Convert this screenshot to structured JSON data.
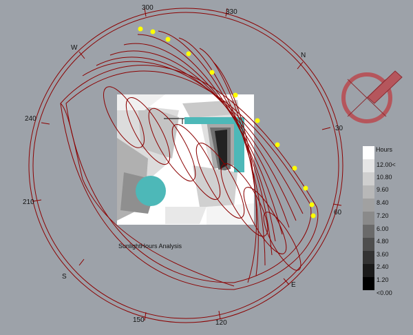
{
  "viewport": {
    "analysis_label": "SunlightHours Analysis",
    "compass": {
      "cardinals": [
        "W",
        "N",
        "S",
        "E"
      ],
      "degree_labels": [
        "300",
        "330",
        "240",
        "30",
        "210",
        "60",
        "150",
        "120"
      ]
    },
    "legend": {
      "title": "Hours",
      "values": [
        "12.00<",
        "10.80",
        "9.60",
        "8.40",
        "7.20",
        "6.00",
        "4.80",
        "3.60",
        "2.40",
        "1.20",
        "<0.00"
      ],
      "swatch_colors": [
        "#ffffff",
        "#e6e6e6",
        "#cfcfcf",
        "#b8b8b8",
        "#a1a1a1",
        "#8a8a8a",
        "#6a6a6a",
        "#4e4e4e",
        "#333333",
        "#1a1a1a",
        "#000000"
      ]
    },
    "colors": {
      "background": "#9da2a9",
      "sunpath": "#8b0000",
      "building": "#4db8b8",
      "sun_marker": "#ffff00"
    },
    "icons": [
      "compass-north-indicator-icon"
    ]
  }
}
